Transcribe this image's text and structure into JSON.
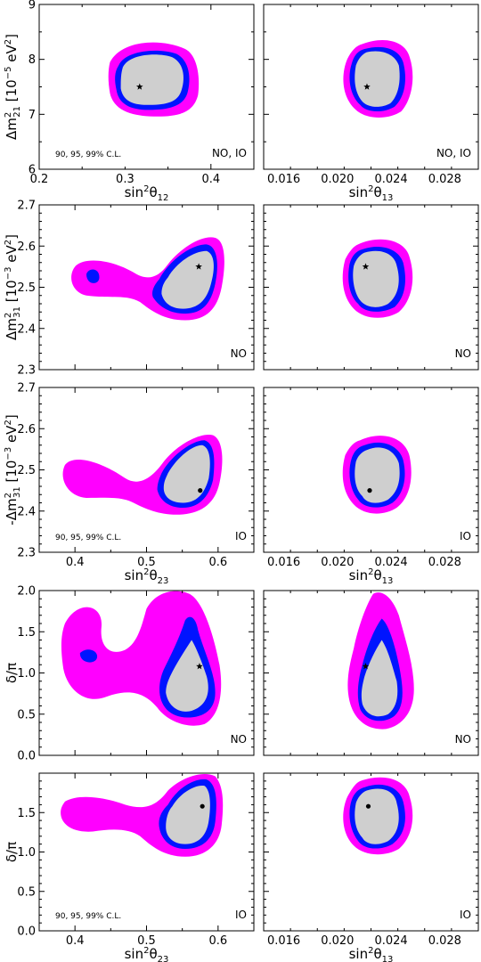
{
  "colors": {
    "c90": "#cfcfcf",
    "c95": "#0014ff",
    "c99": "#ff00ff",
    "frame": "#000000"
  },
  "chart_data": [
    {
      "id": "p11",
      "type": "contour",
      "xlabel_html": "sin<tspan dy='-6' font-size='10'>2</tspan><tspan dy='6'>θ</tspan><tspan dy='4' font-size='10'>12</tspan>",
      "ylabel_html": "Δm<tspan dy='-6' font-size='10'>2</tspan><tspan dy='10' dx='-6' font-size='10'>21</tspan><tspan dy='-4'> [10</tspan><tspan dy='-6' font-size='10'>−5</tspan><tspan dy='6'> eV</tspan><tspan dy='-6' font-size='10'>2</tspan><tspan dy='6'>]</tspan>",
      "xlim": [
        0.2,
        0.45
      ],
      "ylim": [
        6,
        9
      ],
      "xticks": [
        "0.2",
        "0.3",
        "0.4"
      ],
      "yticks": [
        "6",
        "7",
        "8",
        "9"
      ],
      "bestfit": {
        "x": 0.317,
        "y": 7.5,
        "marker": "star"
      },
      "annotation": "90, 95, 99% C.L.",
      "corner": "NO, IO"
    },
    {
      "id": "p12",
      "type": "contour",
      "xlabel_html": "sin<tspan dy='-6' font-size='10'>2</tspan><tspan dy='6'>θ</tspan><tspan dy='4' font-size='10'>13</tspan>",
      "xlim": [
        0.0145,
        0.0305
      ],
      "ylim": [
        6,
        9
      ],
      "xticks": [
        "0.016",
        "0.020",
        "0.024",
        "0.028"
      ],
      "bestfit": {
        "x": 0.0222,
        "y": 7.5,
        "marker": "star"
      },
      "corner": "NO, IO"
    },
    {
      "id": "p21",
      "type": "contour",
      "ylabel_html": "Δm<tspan dy='-6' font-size='10'>2</tspan><tspan dy='10' dx='-6' font-size='10'>31</tspan><tspan dy='-4'> [10</tspan><tspan dy='-6' font-size='10'>−3</tspan><tspan dy='6'> eV</tspan><tspan dy='-6' font-size='10'>2</tspan><tspan dy='6'>]</tspan>",
      "xlim": [
        0.35,
        0.65
      ],
      "ylim": [
        2.3,
        2.7
      ],
      "yticks": [
        "2.3",
        "2.4",
        "2.5",
        "2.6",
        "2.7"
      ],
      "bestfit": {
        "x": 0.573,
        "y": 2.55,
        "marker": "star"
      },
      "corner": "NO"
    },
    {
      "id": "p22",
      "type": "contour",
      "xlim": [
        0.0145,
        0.0305
      ],
      "ylim": [
        2.3,
        2.7
      ],
      "bestfit": {
        "x": 0.0221,
        "y": 2.55,
        "marker": "star"
      },
      "corner": "NO"
    },
    {
      "id": "p31",
      "type": "contour",
      "xlabel_html": "sin<tspan dy='-6' font-size='10'>2</tspan><tspan dy='6'>θ</tspan><tspan dy='4' font-size='10'>23</tspan>",
      "ylabel_html": "-Δm<tspan dy='-6' font-size='10'>2</tspan><tspan dy='10' dx='-6' font-size='10'>31</tspan><tspan dy='-4'> [10</tspan><tspan dy='-6' font-size='10'>−3</tspan><tspan dy='6'> eV</tspan><tspan dy='-6' font-size='10'>2</tspan><tspan dy='6'>]</tspan>",
      "xlim": [
        0.35,
        0.65
      ],
      "ylim": [
        2.3,
        2.7
      ],
      "xticks": [
        "0.4",
        "0.5",
        "0.6"
      ],
      "yticks": [
        "2.3",
        "2.4",
        "2.5",
        "2.6",
        "2.7"
      ],
      "bestfit": {
        "x": 0.575,
        "y": 2.45,
        "marker": "dot"
      },
      "annotation": "90, 95, 99% C.L.",
      "corner": "IO"
    },
    {
      "id": "p32",
      "type": "contour",
      "xlabel_html": "sin<tspan dy='-6' font-size='10'>2</tspan><tspan dy='6'>θ</tspan><tspan dy='4' font-size='10'>13</tspan>",
      "xlim": [
        0.0145,
        0.0305
      ],
      "ylim": [
        2.3,
        2.7
      ],
      "xticks": [
        "0.016",
        "0.020",
        "0.024",
        "0.028"
      ],
      "bestfit": {
        "x": 0.0224,
        "y": 2.45,
        "marker": "dot"
      },
      "corner": "IO"
    },
    {
      "id": "p41",
      "type": "contour",
      "ylabel_html": "δ/π",
      "xlim": [
        0.35,
        0.65
      ],
      "ylim": [
        0,
        2
      ],
      "yticks": [
        "0.0",
        "0.5",
        "1.0",
        "1.5",
        "2.0"
      ],
      "bestfit": {
        "x": 0.574,
        "y": 1.08,
        "marker": "star"
      },
      "corner": "NO"
    },
    {
      "id": "p42",
      "type": "contour",
      "xlim": [
        0.0145,
        0.0305
      ],
      "ylim": [
        0,
        2
      ],
      "bestfit": {
        "x": 0.0221,
        "y": 1.08,
        "marker": "star"
      },
      "corner": "NO"
    },
    {
      "id": "p51",
      "type": "contour",
      "xlabel_html": "sin<tspan dy='-6' font-size='10'>2</tspan><tspan dy='6'>θ</tspan><tspan dy='4' font-size='10'>23</tspan>",
      "ylabel_html": "δ/π",
      "xlim": [
        0.35,
        0.65
      ],
      "ylim": [
        0,
        2
      ],
      "xticks": [
        "0.4",
        "0.5",
        "0.6"
      ],
      "yticks": [
        "0.0",
        "0.5",
        "1.0",
        "1.5"
      ],
      "bestfit": {
        "x": 0.578,
        "y": 1.58,
        "marker": "dot"
      },
      "annotation": "90, 95, 99% C.L.",
      "corner": "IO"
    },
    {
      "id": "p52",
      "type": "contour",
      "xlabel_html": "sin<tspan dy='-6' font-size='10'>2</tspan><tspan dy='6'>θ</tspan><tspan dy='4' font-size='10'>13</tspan>",
      "xlim": [
        0.0145,
        0.0305
      ],
      "ylim": [
        0,
        2
      ],
      "xticks": [
        "0.016",
        "0.020",
        "0.024",
        "0.028"
      ],
      "bestfit": {
        "x": 0.0223,
        "y": 1.58,
        "marker": "dot"
      },
      "corner": "IO"
    }
  ]
}
